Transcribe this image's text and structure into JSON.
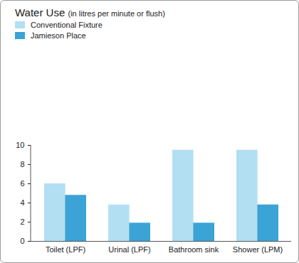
{
  "chart_data": {
    "type": "bar",
    "title": "Water Use",
    "subtitle": "(in litres per minute or flush)",
    "categories": [
      "Toilet (LPF)",
      "Urinal (LPF)",
      "Bathroom sink",
      "Shower (LPM)"
    ],
    "series": [
      {
        "name": "Conventional Fixture",
        "color": "#b3dff2",
        "values": [
          6,
          3.8,
          9.5,
          9.5
        ]
      },
      {
        "name": "Jamieson Place",
        "color": "#3ba3d6",
        "values": [
          4.8,
          1.9,
          1.9,
          3.8
        ]
      }
    ],
    "ylim": [
      0,
      10
    ],
    "yticks": [
      0,
      2,
      4,
      6,
      8,
      10
    ],
    "grid": false,
    "legend": "top-left"
  }
}
